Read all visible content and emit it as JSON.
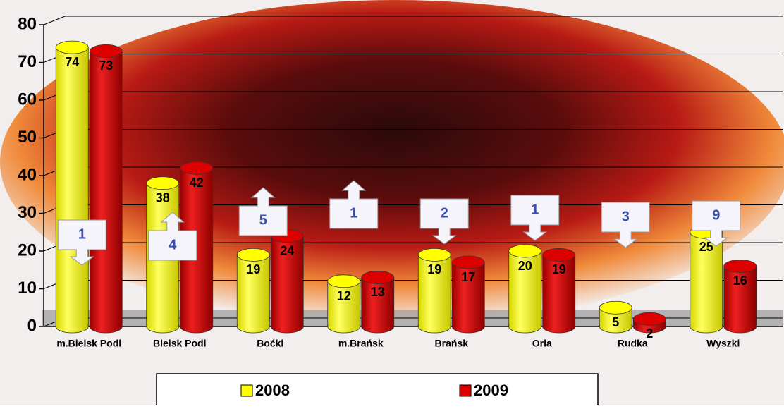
{
  "chart_data": {
    "type": "bar",
    "categories": [
      "m.Bielsk Podl",
      "Bielsk Podl",
      "Boćki",
      "m.Brańsk",
      "Brańsk",
      "Orla",
      "Rudka",
      "Wyszki"
    ],
    "series": [
      {
        "name": "2008",
        "color": "#ffff00",
        "values": [
          74,
          38,
          19,
          12,
          19,
          20,
          5,
          25
        ]
      },
      {
        "name": "2009",
        "color": "#dd0000",
        "values": [
          73,
          42,
          24,
          13,
          17,
          19,
          2,
          16
        ]
      }
    ],
    "changes": [
      {
        "value": 1,
        "direction": "down"
      },
      {
        "value": 4,
        "direction": "up"
      },
      {
        "value": 5,
        "direction": "up"
      },
      {
        "value": 1,
        "direction": "up"
      },
      {
        "value": 2,
        "direction": "down"
      },
      {
        "value": 1,
        "direction": "down"
      },
      {
        "value": 3,
        "direction": "down"
      },
      {
        "value": 9,
        "direction": "down"
      }
    ],
    "ylim": [
      0,
      80
    ],
    "yticks": [
      0,
      10,
      20,
      30,
      40,
      50,
      60,
      70,
      80
    ],
    "grid": true,
    "legend": "bottom"
  }
}
